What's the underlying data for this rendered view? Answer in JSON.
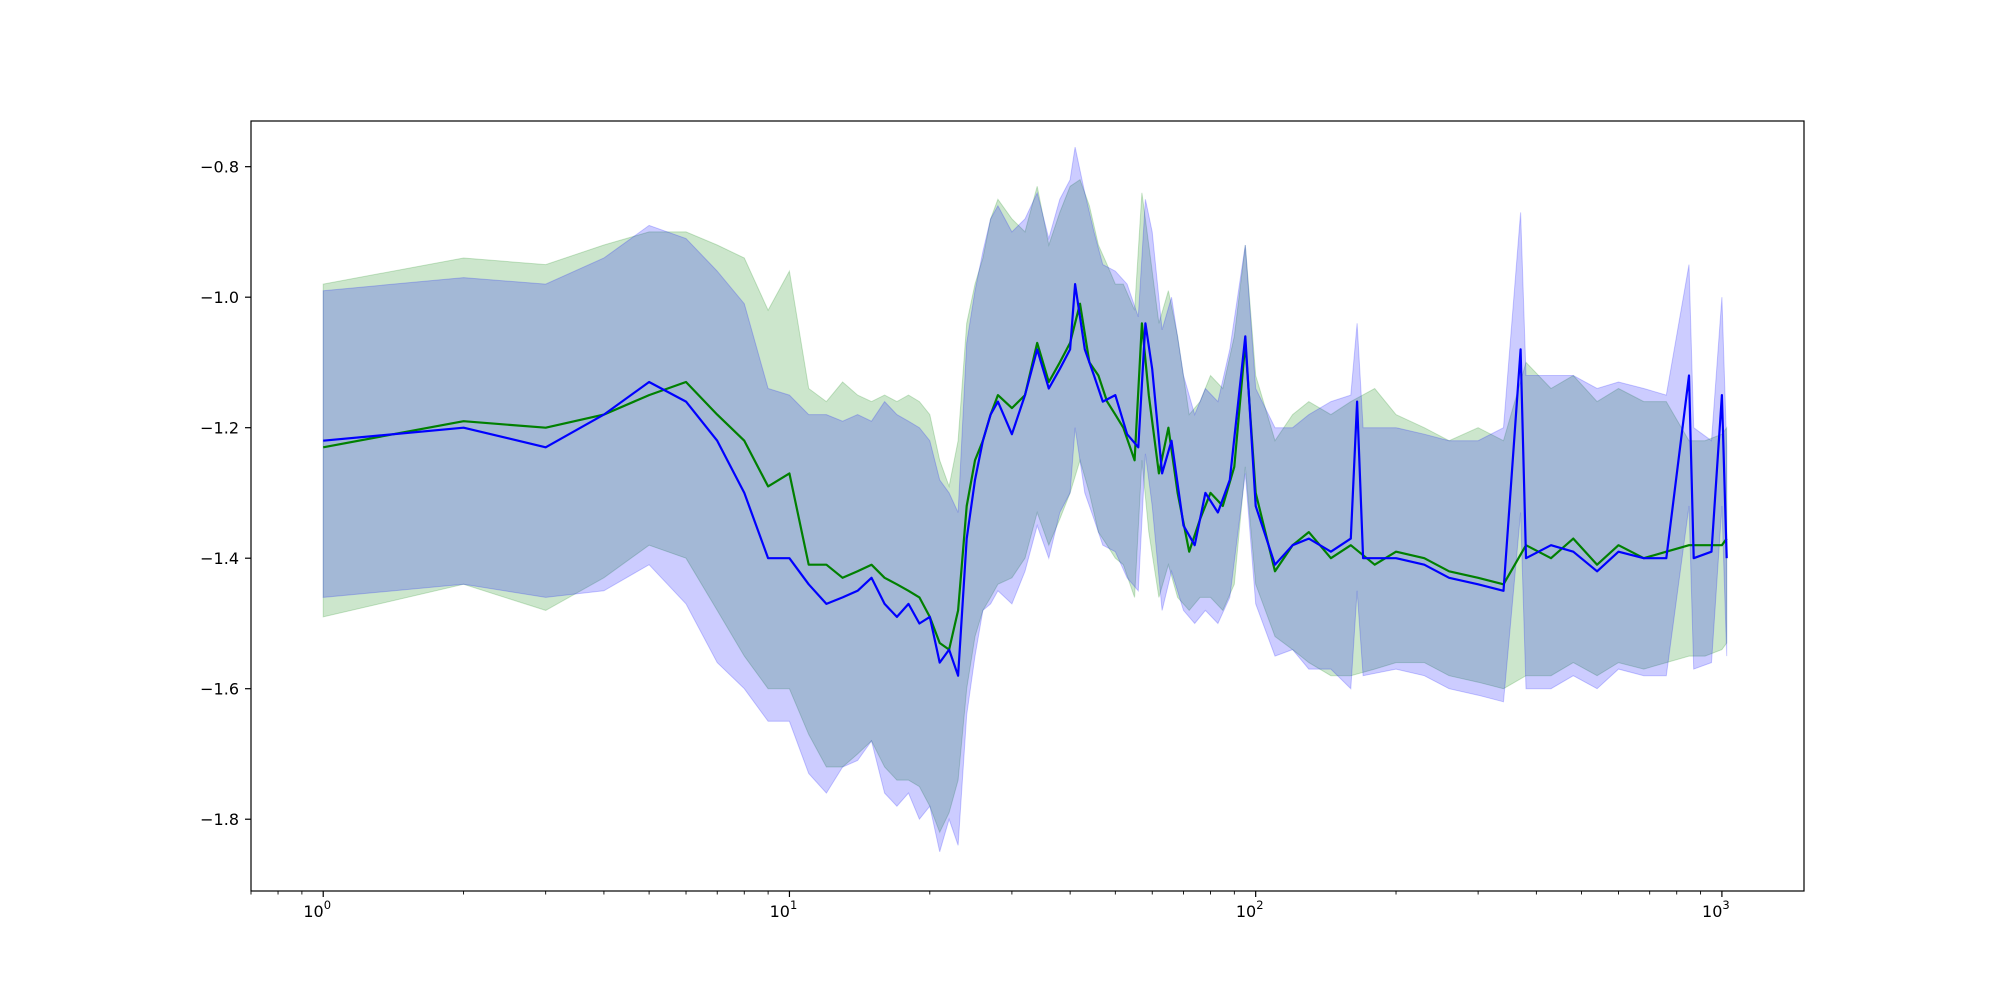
{
  "chart_data": {
    "type": "line",
    "title": "",
    "xlabel": "",
    "ylabel": "",
    "xscale": "log",
    "xlim": [
      0.7,
      1500
    ],
    "ylim": [
      -1.91,
      -0.73
    ],
    "grid": false,
    "legend": "none",
    "x_ticks": [
      {
        "value": 1,
        "base": "10",
        "exp": "0"
      },
      {
        "value": 10,
        "base": "10",
        "exp": "1"
      },
      {
        "value": 100,
        "base": "10",
        "exp": "2"
      },
      {
        "value": 1000,
        "base": "10",
        "exp": "3"
      }
    ],
    "y_ticks": [
      {
        "value": -0.8,
        "label": "−0.8"
      },
      {
        "value": -1.0,
        "label": "−1.0"
      },
      {
        "value": -1.2,
        "label": "−1.2"
      },
      {
        "value": -1.4,
        "label": "−1.4"
      },
      {
        "value": -1.6,
        "label": "−1.6"
      },
      {
        "value": -1.8,
        "label": "−1.8"
      }
    ],
    "series": [
      {
        "color": "#008000",
        "band_color": "#008000",
        "band_opacity": 0.2,
        "points": [
          [
            1,
            -1.23,
            -0.98,
            -1.49
          ],
          [
            2,
            -1.19,
            -0.94,
            -1.44
          ],
          [
            3,
            -1.2,
            -0.95,
            -1.48
          ],
          [
            4,
            -1.18,
            -0.92,
            -1.43
          ],
          [
            5,
            -1.15,
            -0.9,
            -1.38
          ],
          [
            6,
            -1.13,
            -0.9,
            -1.4
          ],
          [
            7,
            -1.18,
            -0.92,
            -1.48
          ],
          [
            8,
            -1.22,
            -0.94,
            -1.55
          ],
          [
            9,
            -1.29,
            -1.02,
            -1.6
          ],
          [
            10,
            -1.27,
            -0.96,
            -1.6
          ],
          [
            11,
            -1.41,
            -1.14,
            -1.67
          ],
          [
            12,
            -1.41,
            -1.16,
            -1.72
          ],
          [
            13,
            -1.43,
            -1.13,
            -1.72
          ],
          [
            14,
            -1.42,
            -1.15,
            -1.7
          ],
          [
            15,
            -1.41,
            -1.16,
            -1.68
          ],
          [
            16,
            -1.43,
            -1.15,
            -1.72
          ],
          [
            17,
            -1.44,
            -1.16,
            -1.74
          ],
          [
            18,
            -1.45,
            -1.15,
            -1.74
          ],
          [
            19,
            -1.46,
            -1.16,
            -1.75
          ],
          [
            20,
            -1.49,
            -1.18,
            -1.78
          ],
          [
            21,
            -1.53,
            -1.25,
            -1.82
          ],
          [
            22,
            -1.54,
            -1.29,
            -1.79
          ],
          [
            23,
            -1.48,
            -1.22,
            -1.74
          ],
          [
            24,
            -1.32,
            -1.04,
            -1.6
          ],
          [
            25,
            -1.25,
            -0.98,
            -1.52
          ],
          [
            26,
            -1.22,
            -0.94,
            -1.48
          ],
          [
            27,
            -1.18,
            -0.88,
            -1.46
          ],
          [
            28,
            -1.15,
            -0.85,
            -1.44
          ],
          [
            30,
            -1.17,
            -0.88,
            -1.43
          ],
          [
            32,
            -1.15,
            -0.9,
            -1.4
          ],
          [
            34,
            -1.07,
            -0.83,
            -1.33
          ],
          [
            36,
            -1.13,
            -0.92,
            -1.38
          ],
          [
            38,
            -1.1,
            -0.87,
            -1.34
          ],
          [
            40,
            -1.07,
            -0.83,
            -1.3
          ],
          [
            42,
            -1.01,
            -0.82,
            -1.25
          ],
          [
            44,
            -1.1,
            -0.86,
            -1.3
          ],
          [
            46,
            -1.12,
            -0.92,
            -1.36
          ],
          [
            48,
            -1.16,
            -0.95,
            -1.38
          ],
          [
            50,
            -1.18,
            -0.98,
            -1.4
          ],
          [
            52,
            -1.2,
            -0.98,
            -1.41
          ],
          [
            55,
            -1.25,
            -1.02,
            -1.46
          ],
          [
            57,
            -1.04,
            -0.84,
            -1.25
          ],
          [
            59,
            -1.15,
            -0.92,
            -1.36
          ],
          [
            62,
            -1.27,
            -1.04,
            -1.46
          ],
          [
            65,
            -1.2,
            -0.99,
            -1.41
          ],
          [
            68,
            -1.3,
            -1.06,
            -1.46
          ],
          [
            72,
            -1.39,
            -1.18,
            -1.48
          ],
          [
            76,
            -1.34,
            -1.16,
            -1.46
          ],
          [
            80,
            -1.3,
            -1.12,
            -1.46
          ],
          [
            85,
            -1.32,
            -1.14,
            -1.48
          ],
          [
            90,
            -1.26,
            -1.06,
            -1.44
          ],
          [
            95,
            -1.07,
            -0.92,
            -1.26
          ],
          [
            100,
            -1.3,
            -1.12,
            -1.44
          ],
          [
            110,
            -1.42,
            -1.22,
            -1.52
          ],
          [
            120,
            -1.38,
            -1.18,
            -1.54
          ],
          [
            130,
            -1.36,
            -1.16,
            -1.56
          ],
          [
            145,
            -1.4,
            -1.18,
            -1.58
          ],
          [
            160,
            -1.38,
            -1.16,
            -1.58
          ],
          [
            180,
            -1.41,
            -1.14,
            -1.57
          ],
          [
            200,
            -1.39,
            -1.18,
            -1.56
          ],
          [
            230,
            -1.4,
            -1.2,
            -1.56
          ],
          [
            260,
            -1.42,
            -1.22,
            -1.58
          ],
          [
            300,
            -1.43,
            -1.2,
            -1.59
          ],
          [
            340,
            -1.44,
            -1.22,
            -1.6
          ],
          [
            380,
            -1.38,
            -1.1,
            -1.58
          ],
          [
            430,
            -1.4,
            -1.14,
            -1.58
          ],
          [
            480,
            -1.37,
            -1.12,
            -1.56
          ],
          [
            540,
            -1.41,
            -1.16,
            -1.58
          ],
          [
            600,
            -1.38,
            -1.14,
            -1.56
          ],
          [
            680,
            -1.4,
            -1.16,
            -1.57
          ],
          [
            760,
            -1.39,
            -1.16,
            -1.56
          ],
          [
            850,
            -1.38,
            -1.22,
            -1.55
          ],
          [
            920,
            -1.38,
            -1.22,
            -1.55
          ],
          [
            1000,
            -1.38,
            -1.21,
            -1.54
          ],
          [
            1024,
            -1.37,
            -1.2,
            -1.53
          ]
        ]
      },
      {
        "color": "#0000ff",
        "band_color": "#0000ff",
        "band_opacity": 0.2,
        "points": [
          [
            1,
            -1.22,
            -0.99,
            -1.46
          ],
          [
            2,
            -1.2,
            -0.97,
            -1.44
          ],
          [
            3,
            -1.23,
            -0.98,
            -1.46
          ],
          [
            4,
            -1.18,
            -0.94,
            -1.45
          ],
          [
            5,
            -1.13,
            -0.89,
            -1.41
          ],
          [
            6,
            -1.16,
            -0.91,
            -1.47
          ],
          [
            7,
            -1.22,
            -0.96,
            -1.56
          ],
          [
            8,
            -1.3,
            -1.01,
            -1.6
          ],
          [
            9,
            -1.4,
            -1.14,
            -1.65
          ],
          [
            10,
            -1.4,
            -1.15,
            -1.65
          ],
          [
            11,
            -1.44,
            -1.18,
            -1.73
          ],
          [
            12,
            -1.47,
            -1.18,
            -1.76
          ],
          [
            13,
            -1.46,
            -1.19,
            -1.72
          ],
          [
            14,
            -1.45,
            -1.18,
            -1.71
          ],
          [
            15,
            -1.43,
            -1.19,
            -1.68
          ],
          [
            16,
            -1.47,
            -1.16,
            -1.76
          ],
          [
            17,
            -1.49,
            -1.18,
            -1.78
          ],
          [
            18,
            -1.47,
            -1.19,
            -1.76
          ],
          [
            19,
            -1.5,
            -1.2,
            -1.8
          ],
          [
            20,
            -1.49,
            -1.22,
            -1.78
          ],
          [
            21,
            -1.56,
            -1.28,
            -1.85
          ],
          [
            22,
            -1.54,
            -1.3,
            -1.8
          ],
          [
            23,
            -1.58,
            -1.33,
            -1.84
          ],
          [
            24,
            -1.37,
            -1.07,
            -1.64
          ],
          [
            25,
            -1.28,
            -0.99,
            -1.55
          ],
          [
            26,
            -1.22,
            -0.93,
            -1.48
          ],
          [
            27,
            -1.18,
            -0.88,
            -1.47
          ],
          [
            28,
            -1.16,
            -0.86,
            -1.45
          ],
          [
            30,
            -1.21,
            -0.9,
            -1.47
          ],
          [
            32,
            -1.15,
            -0.88,
            -1.42
          ],
          [
            34,
            -1.08,
            -0.84,
            -1.35
          ],
          [
            36,
            -1.14,
            -0.91,
            -1.4
          ],
          [
            38,
            -1.11,
            -0.85,
            -1.33
          ],
          [
            40,
            -1.08,
            -0.82,
            -1.3
          ],
          [
            41,
            -0.98,
            -0.77,
            -1.2
          ],
          [
            43,
            -1.08,
            -0.84,
            -1.3
          ],
          [
            45,
            -1.12,
            -0.9,
            -1.34
          ],
          [
            47,
            -1.16,
            -0.95,
            -1.38
          ],
          [
            50,
            -1.15,
            -0.96,
            -1.39
          ],
          [
            53,
            -1.21,
            -0.98,
            -1.43
          ],
          [
            56,
            -1.23,
            -1.03,
            -1.45
          ],
          [
            58,
            -1.04,
            -0.85,
            -1.24
          ],
          [
            60,
            -1.11,
            -0.9,
            -1.32
          ],
          [
            63,
            -1.27,
            -1.05,
            -1.48
          ],
          [
            66,
            -1.22,
            -1.0,
            -1.42
          ],
          [
            70,
            -1.35,
            -1.12,
            -1.48
          ],
          [
            74,
            -1.38,
            -1.18,
            -1.5
          ],
          [
            78,
            -1.3,
            -1.14,
            -1.48
          ],
          [
            83,
            -1.33,
            -1.16,
            -1.5
          ],
          [
            88,
            -1.28,
            -1.08,
            -1.46
          ],
          [
            95,
            -1.06,
            -0.92,
            -1.27
          ],
          [
            100,
            -1.32,
            -1.14,
            -1.47
          ],
          [
            110,
            -1.41,
            -1.2,
            -1.55
          ],
          [
            120,
            -1.38,
            -1.2,
            -1.54
          ],
          [
            130,
            -1.37,
            -1.18,
            -1.57
          ],
          [
            145,
            -1.39,
            -1.16,
            -1.57
          ],
          [
            160,
            -1.37,
            -1.15,
            -1.6
          ],
          [
            165,
            -1.16,
            -1.04,
            -1.45
          ],
          [
            170,
            -1.4,
            -1.2,
            -1.58
          ],
          [
            200,
            -1.4,
            -1.2,
            -1.57
          ],
          [
            230,
            -1.41,
            -1.21,
            -1.58
          ],
          [
            260,
            -1.43,
            -1.22,
            -1.6
          ],
          [
            300,
            -1.44,
            -1.22,
            -1.61
          ],
          [
            340,
            -1.45,
            -1.2,
            -1.62
          ],
          [
            370,
            -1.08,
            -0.87,
            -1.33
          ],
          [
            380,
            -1.4,
            -1.12,
            -1.6
          ],
          [
            430,
            -1.38,
            -1.12,
            -1.6
          ],
          [
            480,
            -1.39,
            -1.12,
            -1.58
          ],
          [
            540,
            -1.42,
            -1.14,
            -1.6
          ],
          [
            600,
            -1.39,
            -1.13,
            -1.57
          ],
          [
            680,
            -1.4,
            -1.14,
            -1.58
          ],
          [
            760,
            -1.4,
            -1.15,
            -1.58
          ],
          [
            850,
            -1.12,
            -0.95,
            -1.32
          ],
          [
            870,
            -1.4,
            -1.2,
            -1.57
          ],
          [
            950,
            -1.39,
            -1.22,
            -1.56
          ],
          [
            1000,
            -1.15,
            -1.0,
            -1.32
          ],
          [
            1024,
            -1.4,
            -1.23,
            -1.55
          ]
        ]
      }
    ]
  }
}
